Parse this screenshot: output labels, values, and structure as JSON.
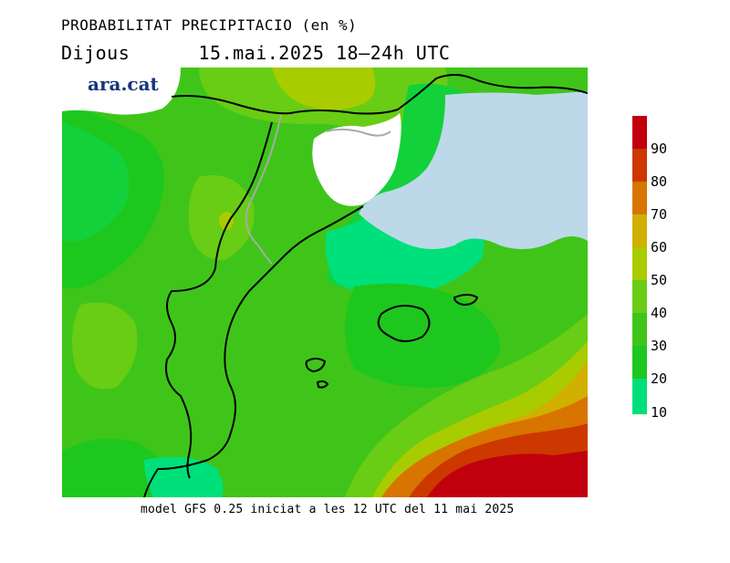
{
  "header": {
    "title": "PROBABILITAT PRECIPITACIO (en %)",
    "day": "Dijous",
    "datetime": "15.mai.2025 18–24h UTC"
  },
  "logo": {
    "text": "ara.cat"
  },
  "footer": {
    "text": "model GFS 0.25 iniciat a les 12 UTC del 11 mai 2025"
  },
  "colors": {
    "c10": "#00e07a",
    "c20": "#13d13a",
    "c30": "#1ec71e",
    "c40": "#3fc51a",
    "c50": "#68cd14",
    "c60": "#a8cc00",
    "c70": "#d0b000",
    "c80": "#d87400",
    "c90": "#cc3800",
    "c100": "#c0000c",
    "sea_nodata": "#bdd8e9",
    "land_nodata": "#ffffff",
    "border": "#000000",
    "secondary_border": "#a9a9a9"
  },
  "legend": {
    "labels": [
      "90",
      "80",
      "70",
      "60",
      "50",
      "40",
      "30",
      "20",
      "10"
    ]
  }
}
